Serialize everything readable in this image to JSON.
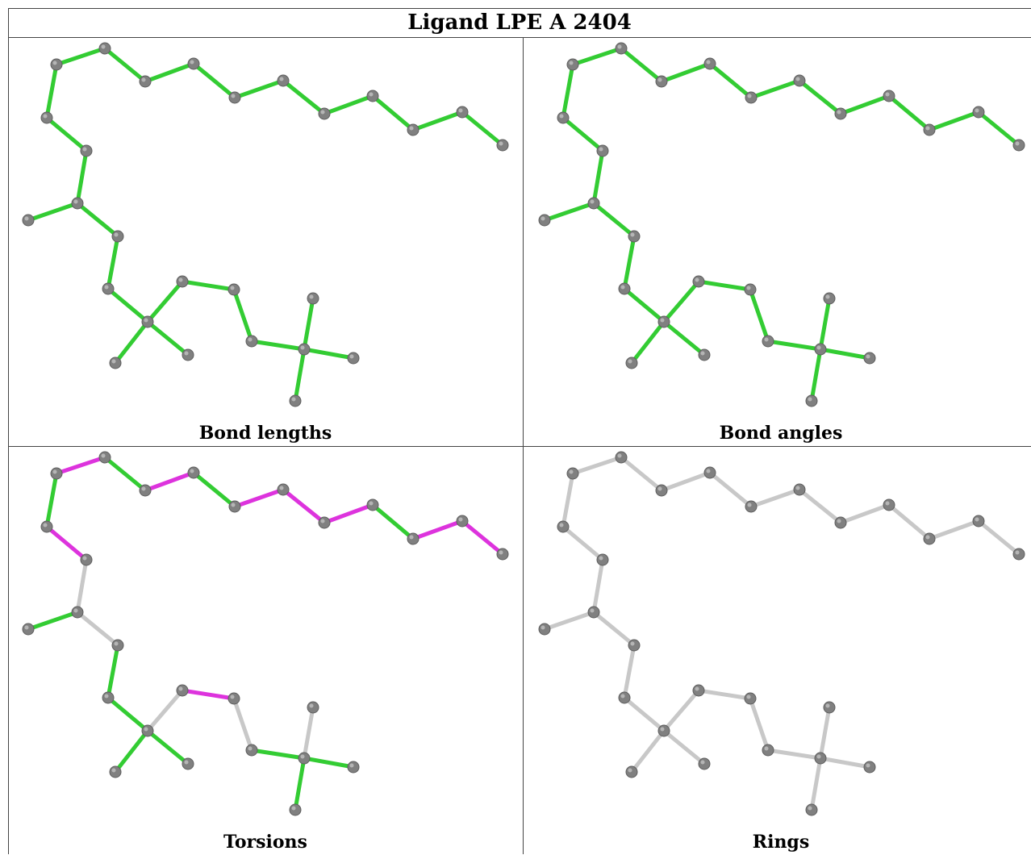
{
  "title": "Ligand LPE A 2404",
  "colors": {
    "ok": "#33cc33",
    "outlier": "#dd33dd",
    "none": "#c8c8c8",
    "atom": "#808080"
  },
  "panels": [
    {
      "caption": "Bond lengths",
      "outlier_bonds": [],
      "neutral_bonds": []
    },
    {
      "caption": "Bond angles",
      "outlier_bonds": [],
      "neutral_bonds": []
    },
    {
      "caption": "Torsions",
      "outlier_bonds": [
        1,
        3,
        5,
        6,
        7,
        9,
        10,
        11,
        20
      ],
      "neutral_bonds": [
        12,
        14,
        19,
        21,
        24,
        26,
        27
      ]
    },
    {
      "caption": "Rings",
      "outlier_bonds": [],
      "neutral_bonds": "all"
    }
  ]
}
